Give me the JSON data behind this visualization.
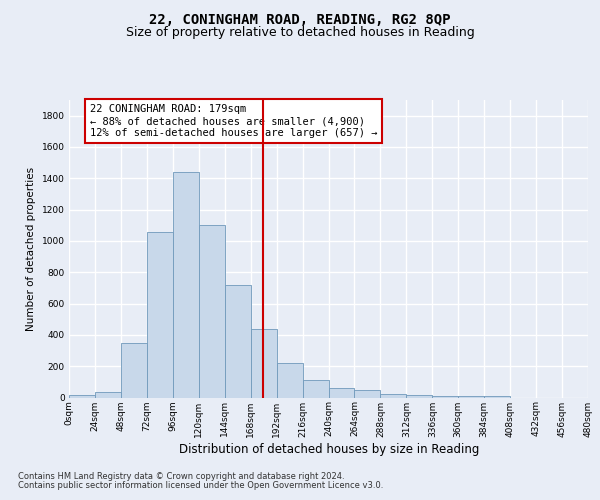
{
  "title": "22, CONINGHAM ROAD, READING, RG2 8QP",
  "subtitle": "Size of property relative to detached houses in Reading",
  "xlabel": "Distribution of detached houses by size in Reading",
  "ylabel": "Number of detached properties",
  "bin_edges": [
    0,
    24,
    48,
    72,
    96,
    120,
    144,
    168,
    192,
    216,
    240,
    264,
    288,
    312,
    336,
    360,
    384,
    408,
    432,
    456,
    480
  ],
  "bar_heights": [
    15,
    35,
    350,
    1060,
    1440,
    1100,
    720,
    435,
    220,
    110,
    60,
    45,
    25,
    15,
    10,
    10,
    10,
    0,
    0,
    0
  ],
  "bar_color": "#c8d8ea",
  "bar_edgecolor": "#7099bb",
  "vline_x": 179,
  "vline_color": "#cc0000",
  "annotation_text": "22 CONINGHAM ROAD: 179sqm\n← 88% of detached houses are smaller (4,900)\n12% of semi-detached houses are larger (657) →",
  "annotation_box_facecolor": "#ffffff",
  "annotation_box_edgecolor": "#cc0000",
  "ylim": [
    0,
    1900
  ],
  "yticks": [
    0,
    200,
    400,
    600,
    800,
    1000,
    1200,
    1400,
    1600,
    1800
  ],
  "background_color": "#e8edf6",
  "grid_color": "#ffffff",
  "footer_line1": "Contains HM Land Registry data © Crown copyright and database right 2024.",
  "footer_line2": "Contains public sector information licensed under the Open Government Licence v3.0.",
  "title_fontsize": 10,
  "subtitle_fontsize": 9,
  "xlabel_fontsize": 8.5,
  "ylabel_fontsize": 7.5,
  "tick_fontsize": 6.5,
  "annotation_fontsize": 7.5,
  "footer_fontsize": 6
}
